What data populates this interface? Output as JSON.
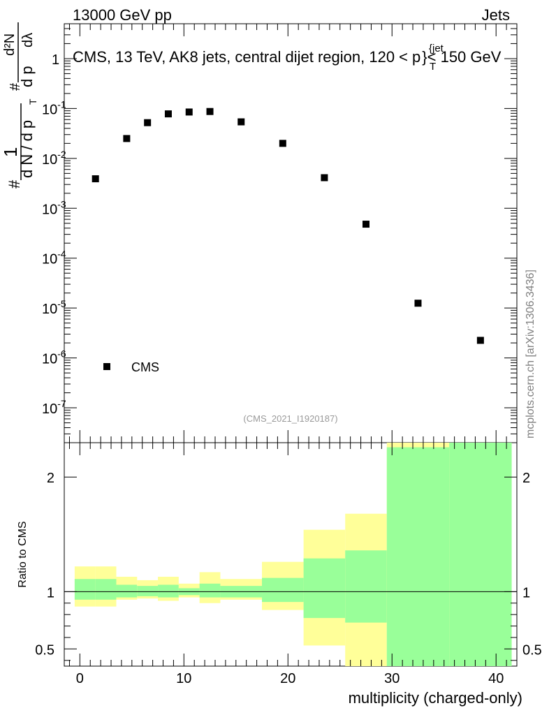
{
  "header": {
    "left": "13000 GeV pp",
    "right": "Jets"
  },
  "watermark": "mcplots.cern.ch [arXiv:1306.3436]",
  "analysis_id": "(CMS_2021_I1920187)",
  "colors": {
    "green_band": "#99ff99",
    "yellow_band": "#ffff99",
    "marker": "#000000"
  },
  "chart_data": [
    {
      "type": "scatter",
      "title": "CMS, 13 TeV, AK8 jets, central dijet region, 120 < p_T^{jet} < 150 GeV",
      "title_parts": {
        "main": "CMS, 13 TeV, AK8 jets, central dijet region, 120 <",
        "p": "p",
        "sub": "T",
        "sup": "{jet",
        "brace": "}",
        "end": "< 150 GeV"
      },
      "ylabel_parts": {
        "hash1": "#",
        "one": "1",
        "dN": "d N / d p",
        "sub": "T",
        "hash2": "#",
        "d2N": "d²N",
        "dpdl": "d p",
        "dl": "dλ"
      },
      "yscale": "log",
      "ylim": [
        2e-08,
        5
      ],
      "yticks": [
        {
          "base": "10",
          "exp": "-7"
        },
        {
          "base": "10",
          "exp": "-6"
        },
        {
          "base": "10",
          "exp": "-5"
        },
        {
          "base": "10",
          "exp": "-4"
        },
        {
          "base": "10",
          "exp": "-3"
        },
        {
          "base": "10",
          "exp": "-2"
        },
        {
          "base": "10",
          "exp": "-1"
        },
        {
          "base": "1",
          "exp": ""
        }
      ],
      "legend": {
        "label": "CMS",
        "position": "bottom-left"
      },
      "series": [
        {
          "name": "CMS",
          "x": [
            1.5,
            4.5,
            6.5,
            8.5,
            10.5,
            12.5,
            15.5,
            19.5,
            23.5,
            27.5,
            32.5,
            38.5
          ],
          "y": [
            0.0039,
            0.025,
            0.052,
            0.078,
            0.085,
            0.087,
            0.054,
            0.02,
            0.0041,
            0.00048,
            1.25e-05,
            2.25e-06
          ]
        }
      ]
    },
    {
      "type": "area",
      "ylabel": "Ratio to CMS",
      "xlabel": "multiplicity (charged-only)",
      "xlim": [
        -1.5,
        42
      ],
      "ylim": [
        0.35,
        2.3
      ],
      "xticks": [
        "0",
        "10",
        "20",
        "30",
        "40"
      ],
      "xtick_values": [
        0,
        10,
        20,
        30,
        40
      ],
      "yticks": [
        "0.5",
        "1",
        "2"
      ],
      "ytick_values": [
        0.5,
        1,
        2
      ],
      "reference_line": 1,
      "bins": [
        {
          "lo": -0.5,
          "hi": 1.5,
          "green": [
            0.93,
            1.11
          ],
          "yellow": [
            0.87,
            1.22
          ]
        },
        {
          "lo": 1.5,
          "hi": 3.5,
          "green": [
            0.93,
            1.11
          ],
          "yellow": [
            0.87,
            1.22
          ]
        },
        {
          "lo": 3.5,
          "hi": 5.5,
          "green": [
            0.95,
            1.06
          ],
          "yellow": [
            0.93,
            1.13
          ]
        },
        {
          "lo": 5.5,
          "hi": 7.5,
          "green": [
            0.96,
            1.05
          ],
          "yellow": [
            0.94,
            1.1
          ]
        },
        {
          "lo": 7.5,
          "hi": 9.5,
          "green": [
            0.95,
            1.06
          ],
          "yellow": [
            0.92,
            1.13
          ]
        },
        {
          "lo": 9.5,
          "hi": 11.5,
          "green": [
            0.97,
            1.03
          ],
          "yellow": [
            0.95,
            1.07
          ]
        },
        {
          "lo": 11.5,
          "hi": 13.5,
          "green": [
            0.95,
            1.07
          ],
          "yellow": [
            0.9,
            1.17
          ]
        },
        {
          "lo": 13.5,
          "hi": 17.5,
          "green": [
            0.95,
            1.05
          ],
          "yellow": [
            0.93,
            1.11
          ]
        },
        {
          "lo": 17.5,
          "hi": 21.5,
          "green": [
            0.91,
            1.12
          ],
          "yellow": [
            0.84,
            1.26
          ]
        },
        {
          "lo": 21.5,
          "hi": 25.5,
          "green": [
            0.77,
            1.29
          ],
          "yellow": [
            0.53,
            1.54
          ]
        },
        {
          "lo": 25.5,
          "hi": 29.5,
          "green": [
            0.73,
            1.36
          ],
          "yellow": [
            0.35,
            1.68
          ]
        },
        {
          "lo": 29.5,
          "hi": 35.5,
          "green": [
            0.35,
            2.26
          ],
          "yellow": [
            0.35,
            2.3
          ]
        },
        {
          "lo": 35.5,
          "hi": 41.5,
          "green": [
            0.35,
            2.3
          ],
          "yellow": [
            0.35,
            2.3
          ]
        }
      ]
    }
  ]
}
